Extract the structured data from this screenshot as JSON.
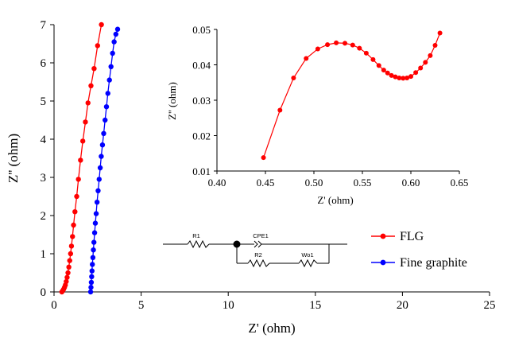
{
  "chart_data": [
    {
      "id": "main",
      "type": "scatter",
      "xlabel": "Z' (ohm)",
      "ylabel": "Z'' (ohm)",
      "xlim": [
        0,
        25
      ],
      "ylim": [
        0,
        7
      ],
      "xticks": [
        0,
        5,
        10,
        15,
        20,
        25
      ],
      "yticks": [
        0,
        1,
        2,
        3,
        4,
        5,
        6,
        7
      ],
      "legend_position": "bottom-right",
      "series": [
        {
          "name": "FLG",
          "color": "#ff0000",
          "x": [
            0.45,
            0.5,
            0.55,
            0.6,
            0.65,
            0.7,
            0.75,
            0.8,
            0.85,
            0.9,
            0.95,
            1.0,
            1.06,
            1.12,
            1.2,
            1.3,
            1.4,
            1.52,
            1.65,
            1.8,
            1.95,
            2.12,
            2.3,
            2.5,
            2.72
          ],
          "y": [
            0.0,
            0.03,
            0.07,
            0.12,
            0.18,
            0.27,
            0.38,
            0.5,
            0.65,
            0.82,
            1.0,
            1.2,
            1.45,
            1.75,
            2.1,
            2.5,
            2.95,
            3.45,
            3.95,
            4.45,
            4.95,
            5.4,
            5.85,
            6.45,
            7.0
          ]
        },
        {
          "name": "Fine graphite",
          "color": "#0000ff",
          "x": [
            2.1,
            2.12,
            2.14,
            2.16,
            2.18,
            2.2,
            2.23,
            2.26,
            2.29,
            2.33,
            2.37,
            2.42,
            2.47,
            2.53,
            2.59,
            2.65,
            2.71,
            2.78,
            2.85,
            2.93,
            3.01,
            3.09,
            3.18,
            3.27,
            3.36,
            3.45,
            3.55,
            3.65
          ],
          "y": [
            0.0,
            0.12,
            0.25,
            0.4,
            0.55,
            0.72,
            0.9,
            1.1,
            1.3,
            1.55,
            1.8,
            2.05,
            2.35,
            2.65,
            2.95,
            3.25,
            3.55,
            3.85,
            4.15,
            4.5,
            4.85,
            5.2,
            5.55,
            5.9,
            6.25,
            6.55,
            6.75,
            6.88
          ]
        }
      ]
    },
    {
      "id": "inset",
      "type": "scatter",
      "xlabel": "Z' (ohm)",
      "ylabel": "Z'' (ohm)",
      "xlim": [
        0.4,
        0.65
      ],
      "ylim": [
        0.01,
        0.05
      ],
      "xticks": [
        0.4,
        0.45,
        0.5,
        0.55,
        0.6,
        0.65
      ],
      "yticks": [
        0.01,
        0.02,
        0.03,
        0.04,
        0.05
      ],
      "series": [
        {
          "name": "FLG",
          "color": "#ff0000",
          "x": [
            0.448,
            0.465,
            0.479,
            0.492,
            0.504,
            0.514,
            0.523,
            0.532,
            0.54,
            0.547,
            0.554,
            0.561,
            0.567,
            0.572,
            0.576,
            0.58,
            0.584,
            0.588,
            0.592,
            0.596,
            0.6,
            0.605,
            0.61,
            0.615,
            0.62,
            0.625,
            0.63
          ],
          "y": [
            0.0138,
            0.0272,
            0.0363,
            0.0418,
            0.0445,
            0.0457,
            0.0462,
            0.0461,
            0.0456,
            0.0447,
            0.0433,
            0.0415,
            0.0398,
            0.0385,
            0.0377,
            0.037,
            0.0366,
            0.0363,
            0.0362,
            0.0363,
            0.0367,
            0.0378,
            0.0391,
            0.0407,
            0.0426,
            0.0455,
            0.049
          ]
        }
      ]
    }
  ],
  "circuit": {
    "labels": [
      "R1",
      "CPE1",
      "R2",
      "Wo1"
    ]
  }
}
